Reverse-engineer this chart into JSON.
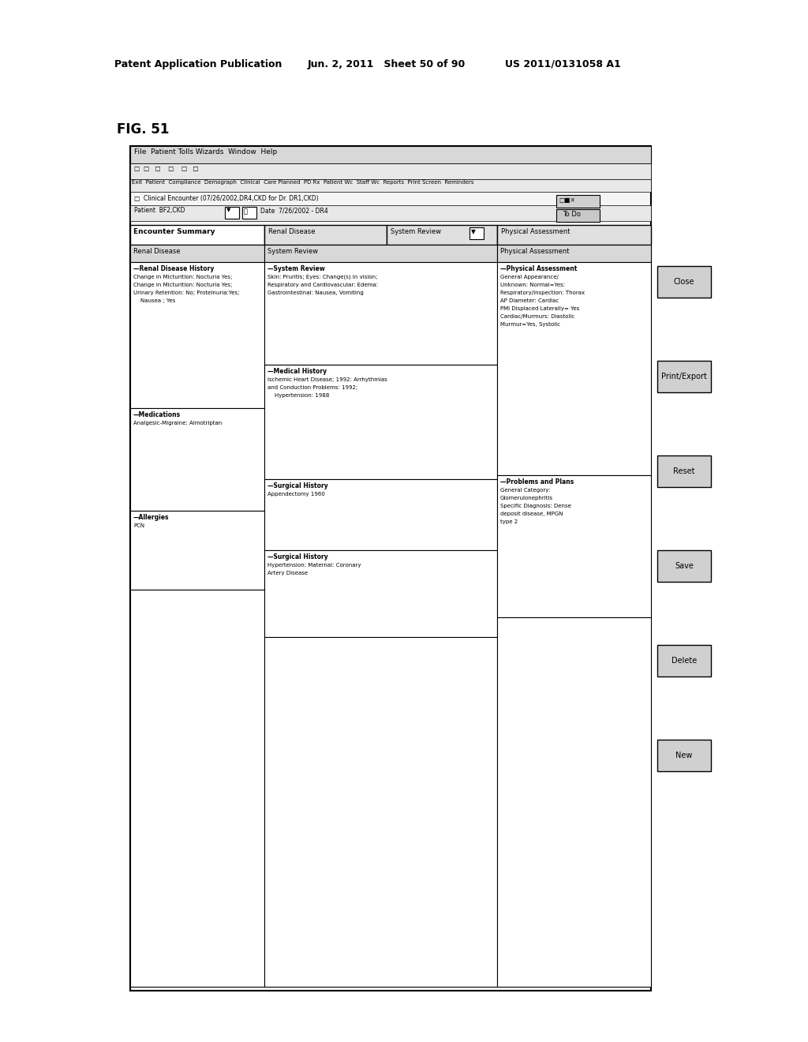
{
  "fig_label": "FIG. 51",
  "header_left": "Patent Application Publication",
  "header_mid": "Jun. 2, 2011   Sheet 50 of 90",
  "header_right": "US 2011/0131058 A1",
  "bg_color": "#ffffff",
  "menu_bar": "File  Patient Tolls Wizards  Window  Help",
  "toolbar_checks": "□   □      □        □       □      □",
  "toolbar_labels": "Exit  Patient  Compliance  Demograph  Clinical  Care Planned  PD Rx  Patient Wc  Staff Wc  Reports  Print Screen  Reminders",
  "patient_encounter": "□  Clinical Encounter (07/26/2002,DR4,CKD for Dr. DR1,CKD)",
  "patient_label": "Patient",
  "patient_value": "BF2,CKD",
  "date_label": "Date",
  "date_value": "7/26/2002 - DR4",
  "encounter_summary": "Encounter Summary",
  "tab_renal": "Renal Disease",
  "tab_system": "System Review",
  "tab_physical": "Physical Assessment",
  "todo": "To Do",
  "win_ctrl": "□■×",
  "col_headers": [
    "Renal Disease",
    "System Review",
    "Physical Assessment"
  ],
  "left_boxes": [
    {
      "title": "Renal Disease History",
      "lines": [
        "Change in Micturition: Nocturia Yes;",
        "Change in Micturition: Nocturia Yes;",
        "Urinary Retention: No; Proteinuria:Yes;",
        "    Nausea ; Yes"
      ]
    },
    {
      "title": "Medications",
      "lines": [
        "Analgesic-Migraine: Almotriptan"
      ]
    },
    {
      "title": "Allergies",
      "lines": [
        "PCN"
      ]
    },
    {
      "title": "",
      "lines": []
    }
  ],
  "mid_boxes": [
    {
      "title": "System Review",
      "lines": [
        "Skin: Pruritis; Eyes: Change(s) in vision;",
        "Respiratory and Cardiovascular: Edema:",
        "Gastrointestinal: Nausea, Vomiting"
      ]
    },
    {
      "title": "Medical History",
      "lines": [
        "Ischemic Heart Disease; 1992: Arrhythmias",
        "and Conduction Problems: 1992;",
        "    Hypertension: 1988"
      ]
    },
    {
      "title": "Surgical History",
      "lines": [
        "Appendectomy 1960"
      ]
    },
    {
      "title": "Surgical History",
      "lines": [
        "Hypertension: Maternal: Coronary",
        "Artery Disease"
      ]
    }
  ],
  "pa_box": {
    "title": "Physical Assessment",
    "lines": [
      "General Appearance/",
      "Unknown: Normal=Yes:",
      "Respiratory/Inspection: Thorax",
      "AP Diameter: Cardiac",
      "PMI Displaced Laterally= Yes",
      "Cardiac/Murmurs: Diastolic",
      "Murmur=Yes, Systolic"
    ]
  },
  "pp_box": {
    "title": "Problems and Plans",
    "lines": [
      "General Category:",
      "Glomerulonephritis",
      "Specific Diagnosis: Dense",
      "deposit disease, MPGN",
      "type 2"
    ]
  },
  "buttons": [
    "Close",
    "Print/Export",
    "Reset",
    "Save",
    "Delete",
    "New"
  ]
}
